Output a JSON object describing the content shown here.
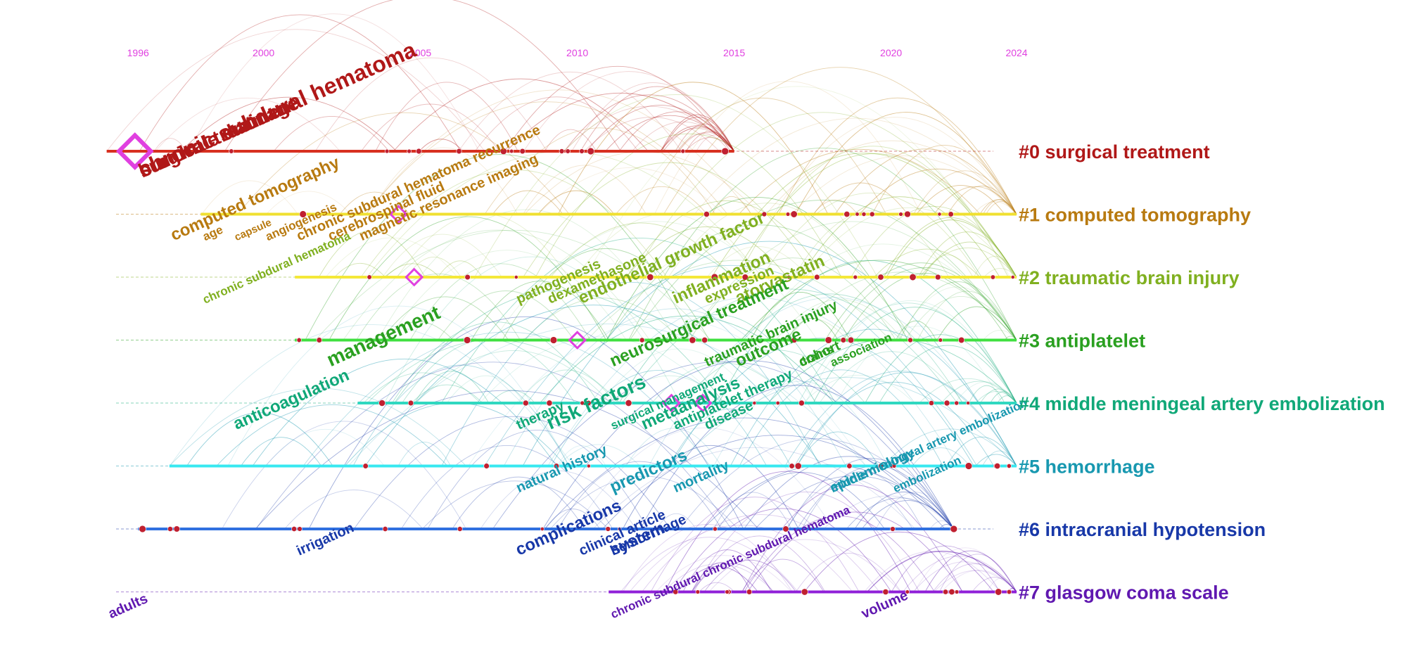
{
  "years": [
    "1996",
    "2000",
    "2005",
    "2010",
    "2015",
    "2020",
    "2024"
  ],
  "year_range": [
    1995,
    2024
  ],
  "clusters": [
    {
      "id": "#0",
      "label": "surgical treatment",
      "color": "#b01818",
      "line": "#d83020",
      "start": 1995,
      "end": 2015
    },
    {
      "id": "#1",
      "label": "computed tomography",
      "color": "#b87a10",
      "line": "#f0e030",
      "start": 1998,
      "end": 2024
    },
    {
      "id": "#2",
      "label": "traumatic brain injury",
      "color": "#80b020",
      "line": "#f4e838",
      "start": 2001,
      "end": 2024
    },
    {
      "id": "#3",
      "label": "antiplatelet",
      "color": "#2aa020",
      "line": "#40e040",
      "start": 2001,
      "end": 2024
    },
    {
      "id": "#4",
      "label": "middle meningeal artery embolization",
      "color": "#10a878",
      "line": "#30d8c0",
      "start": 2003,
      "end": 2024
    },
    {
      "id": "#5",
      "label": "hemorrhage",
      "color": "#1898b0",
      "line": "#38e8f0",
      "start": 1997,
      "end": 2024
    },
    {
      "id": "#6",
      "label": "intracranial hypotension",
      "color": "#1838a8",
      "line": "#3070e0",
      "start": 1996,
      "end": 2022
    },
    {
      "id": "#7",
      "label": "glasgow coma scale",
      "color": "#6018b0",
      "line": "#9020d8",
      "start": 2011,
      "end": 2024
    }
  ],
  "keywords": [
    {
      "text": "surgical treatment",
      "cluster": 0,
      "year": 1996,
      "size": "xl"
    },
    {
      "text": "burr hole drainage",
      "cluster": 0,
      "year": 1996,
      "size": "xl"
    },
    {
      "text": "chronic subdural hematoma",
      "cluster": 0,
      "year": 1996,
      "size": "xxl"
    },
    {
      "text": "age",
      "cluster": 1,
      "year": 1998,
      "size": "s"
    },
    {
      "text": "capsule",
      "cluster": 1,
      "year": 1999,
      "size": "xs"
    },
    {
      "text": "chronic subdural hematoma recurrence",
      "cluster": 1,
      "year": 2001,
      "size": "m"
    },
    {
      "text": "cerebrospinal fluid",
      "cluster": 1,
      "year": 2002,
      "size": "m"
    },
    {
      "text": "magnetic resonance imaging",
      "cluster": 1,
      "year": 2003,
      "size": "m"
    },
    {
      "text": "computed tomography",
      "cluster": 1,
      "year": 1997,
      "size": "l"
    },
    {
      "text": "angiogenesis",
      "cluster": 1,
      "year": 2000,
      "size": "s"
    },
    {
      "text": "pathogenesis",
      "cluster": 2,
      "year": 2008,
      "size": "m"
    },
    {
      "text": "dexamethasone",
      "cluster": 2,
      "year": 2009,
      "size": "m"
    },
    {
      "text": "endothelial growth factor",
      "cluster": 2,
      "year": 2010,
      "size": "l"
    },
    {
      "text": "inflammation",
      "cluster": 2,
      "year": 2013,
      "size": "l"
    },
    {
      "text": "expression",
      "cluster": 2,
      "year": 2014,
      "size": "m"
    },
    {
      "text": "atorvastatin",
      "cluster": 2,
      "year": 2015,
      "size": "l"
    },
    {
      "text": "chronic subdural hematoma",
      "cluster": 2,
      "year": 1998,
      "size": "s"
    },
    {
      "text": "management",
      "cluster": 3,
      "year": 2002,
      "size": "xl"
    },
    {
      "text": "neurosurgical treatment",
      "cluster": 3,
      "year": 2011,
      "size": "l"
    },
    {
      "text": "traumatic brain injury",
      "cluster": 3,
      "year": 2014,
      "size": "m"
    },
    {
      "text": "outcome",
      "cluster": 3,
      "year": 2015,
      "size": "l"
    },
    {
      "text": "cohort",
      "cluster": 3,
      "year": 2017,
      "size": "m"
    },
    {
      "text": "drains",
      "cluster": 3,
      "year": 2017,
      "size": "s"
    },
    {
      "text": "association",
      "cluster": 3,
      "year": 2018,
      "size": "s"
    },
    {
      "text": "anticoagulation",
      "cluster": 4,
      "year": 1999,
      "size": "l"
    },
    {
      "text": "therapy",
      "cluster": 4,
      "year": 2008,
      "size": "m"
    },
    {
      "text": "risk factors",
      "cluster": 4,
      "year": 2009,
      "size": "xl"
    },
    {
      "text": "surgical management",
      "cluster": 4,
      "year": 2011,
      "size": "s"
    },
    {
      "text": "antiplatelet therapy",
      "cluster": 4,
      "year": 2013,
      "size": "m"
    },
    {
      "text": "metaanalysis",
      "cluster": 4,
      "year": 2012,
      "size": "l"
    },
    {
      "text": "disease",
      "cluster": 4,
      "year": 2014,
      "size": "m"
    },
    {
      "text": "natural history",
      "cluster": 5,
      "year": 2008,
      "size": "m"
    },
    {
      "text": "predictors",
      "cluster": 5,
      "year": 2011,
      "size": "l"
    },
    {
      "text": "mortality",
      "cluster": 5,
      "year": 2013,
      "size": "m"
    },
    {
      "text": "epidemiology",
      "cluster": 5,
      "year": 2018,
      "size": "m"
    },
    {
      "text": "middle meningeal artery embolization",
      "cluster": 5,
      "year": 2018,
      "size": "s"
    },
    {
      "text": "embolization",
      "cluster": 5,
      "year": 2020,
      "size": "s"
    },
    {
      "text": "irrigation",
      "cluster": 6,
      "year": 2001,
      "size": "m"
    },
    {
      "text": "complications",
      "cluster": 6,
      "year": 2008,
      "size": "l"
    },
    {
      "text": "clinical article",
      "cluster": 6,
      "year": 2010,
      "size": "m"
    },
    {
      "text": "hemorrhage",
      "cluster": 6,
      "year": 2011,
      "size": "m"
    },
    {
      "text": "system",
      "cluster": 6,
      "year": 2011,
      "size": "l"
    },
    {
      "text": "adults",
      "cluster": 7,
      "year": 1995,
      "size": "m"
    },
    {
      "text": "chronic subdural chronic subdural hematoma",
      "cluster": 7,
      "year": 2011,
      "size": "s"
    },
    {
      "text": "volume",
      "cluster": 7,
      "year": 2019,
      "size": "m"
    }
  ]
}
